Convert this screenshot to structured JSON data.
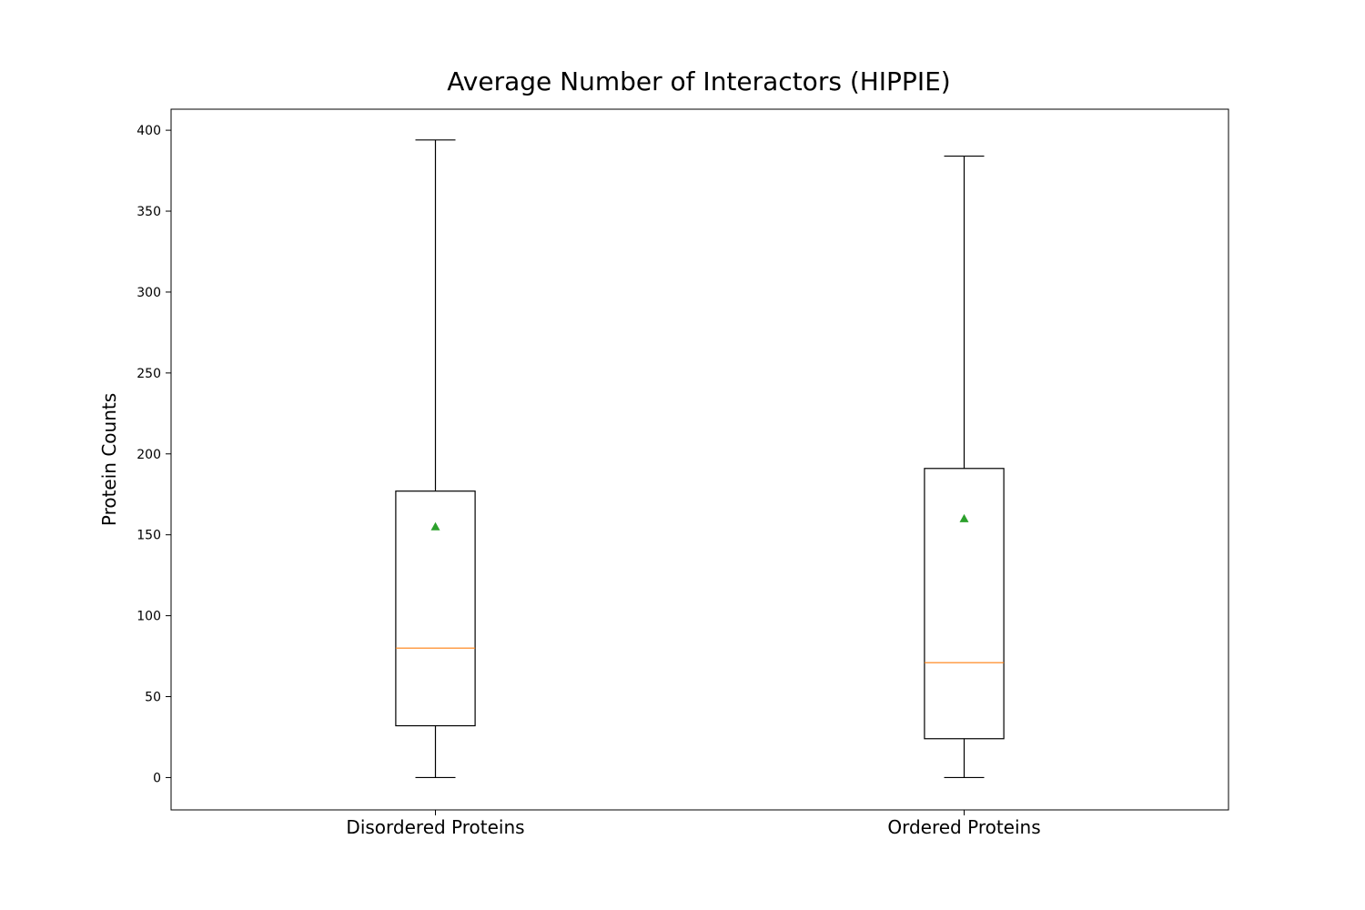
{
  "chart_data": {
    "type": "box",
    "title": "Average Number of Interactors (HIPPIE)",
    "xlabel": "",
    "ylabel": "Protein Counts",
    "ylim": [
      -20,
      413
    ],
    "yticks": [
      0,
      50,
      100,
      150,
      200,
      250,
      300,
      350,
      400
    ],
    "grid": false,
    "categories": [
      "Disordered Proteins",
      "Ordered Proteins"
    ],
    "boxes": [
      {
        "category": "Disordered Proteins",
        "whisker_low": 0,
        "q1": 32,
        "median": 80,
        "q3": 177,
        "whisker_high": 394,
        "mean": 155
      },
      {
        "category": "Ordered Proteins",
        "whisker_low": 0,
        "q1": 24,
        "median": 71,
        "q3": 191,
        "whisker_high": 384,
        "mean": 160
      }
    ],
    "colors": {
      "box": "#000000",
      "median": "#ff7f0e",
      "mean": "#2ca02c"
    }
  }
}
